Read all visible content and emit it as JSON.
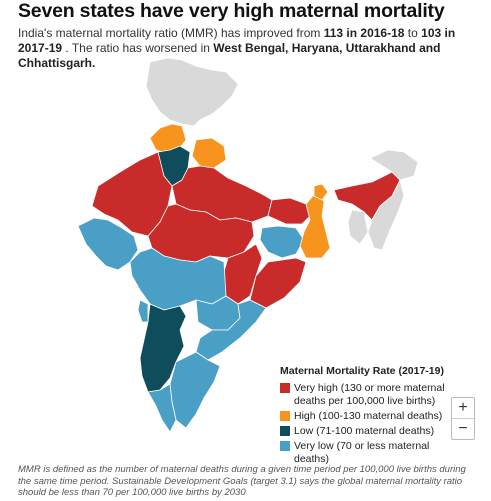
{
  "header": {
    "title": "Seven states have very high maternal mortality",
    "subtitle_pre": "India's maternal mortality ratio (MMR) has improved from ",
    "subtitle_b1": "113 in 2016-18",
    "subtitle_mid": " to ",
    "subtitle_b2": "103 in 2017-19",
    "subtitle_post": " . The ratio has worsened in ",
    "subtitle_b3": "West Bengal, Haryana, Uttarakhand and Chhattisgarh."
  },
  "colors": {
    "very_high": "#c92a2a",
    "high": "#f7941d",
    "low": "#0f4c5c",
    "very_low": "#4a9fc7",
    "no_data": "#d9d9d9",
    "border": "#ffffff"
  },
  "legend": {
    "title": "Maternal Mortality Rate (2017-19)",
    "items": [
      {
        "label": "Very high (130 or more maternal deaths per 100,000 live births)",
        "color": "#c92a2a"
      },
      {
        "label": "High (100-130 maternal deaths)",
        "color": "#f7941d"
      },
      {
        "label": "Low (71-100 maternal deaths)",
        "color": "#0f4c5c"
      },
      {
        "label": "Very low (70 or less maternal deaths)",
        "color": "#4a9fc7"
      }
    ]
  },
  "zoom": {
    "in_label": "+",
    "out_label": "−"
  },
  "footnote": "MMR is defined as the number of maternal deaths during a given time period per 100,000 live births during the same time period. Sustainable Development Goals (target 3.1) says the global maternal mortality ratio should be less than 70 per 100,000 live births by 2030"
}
